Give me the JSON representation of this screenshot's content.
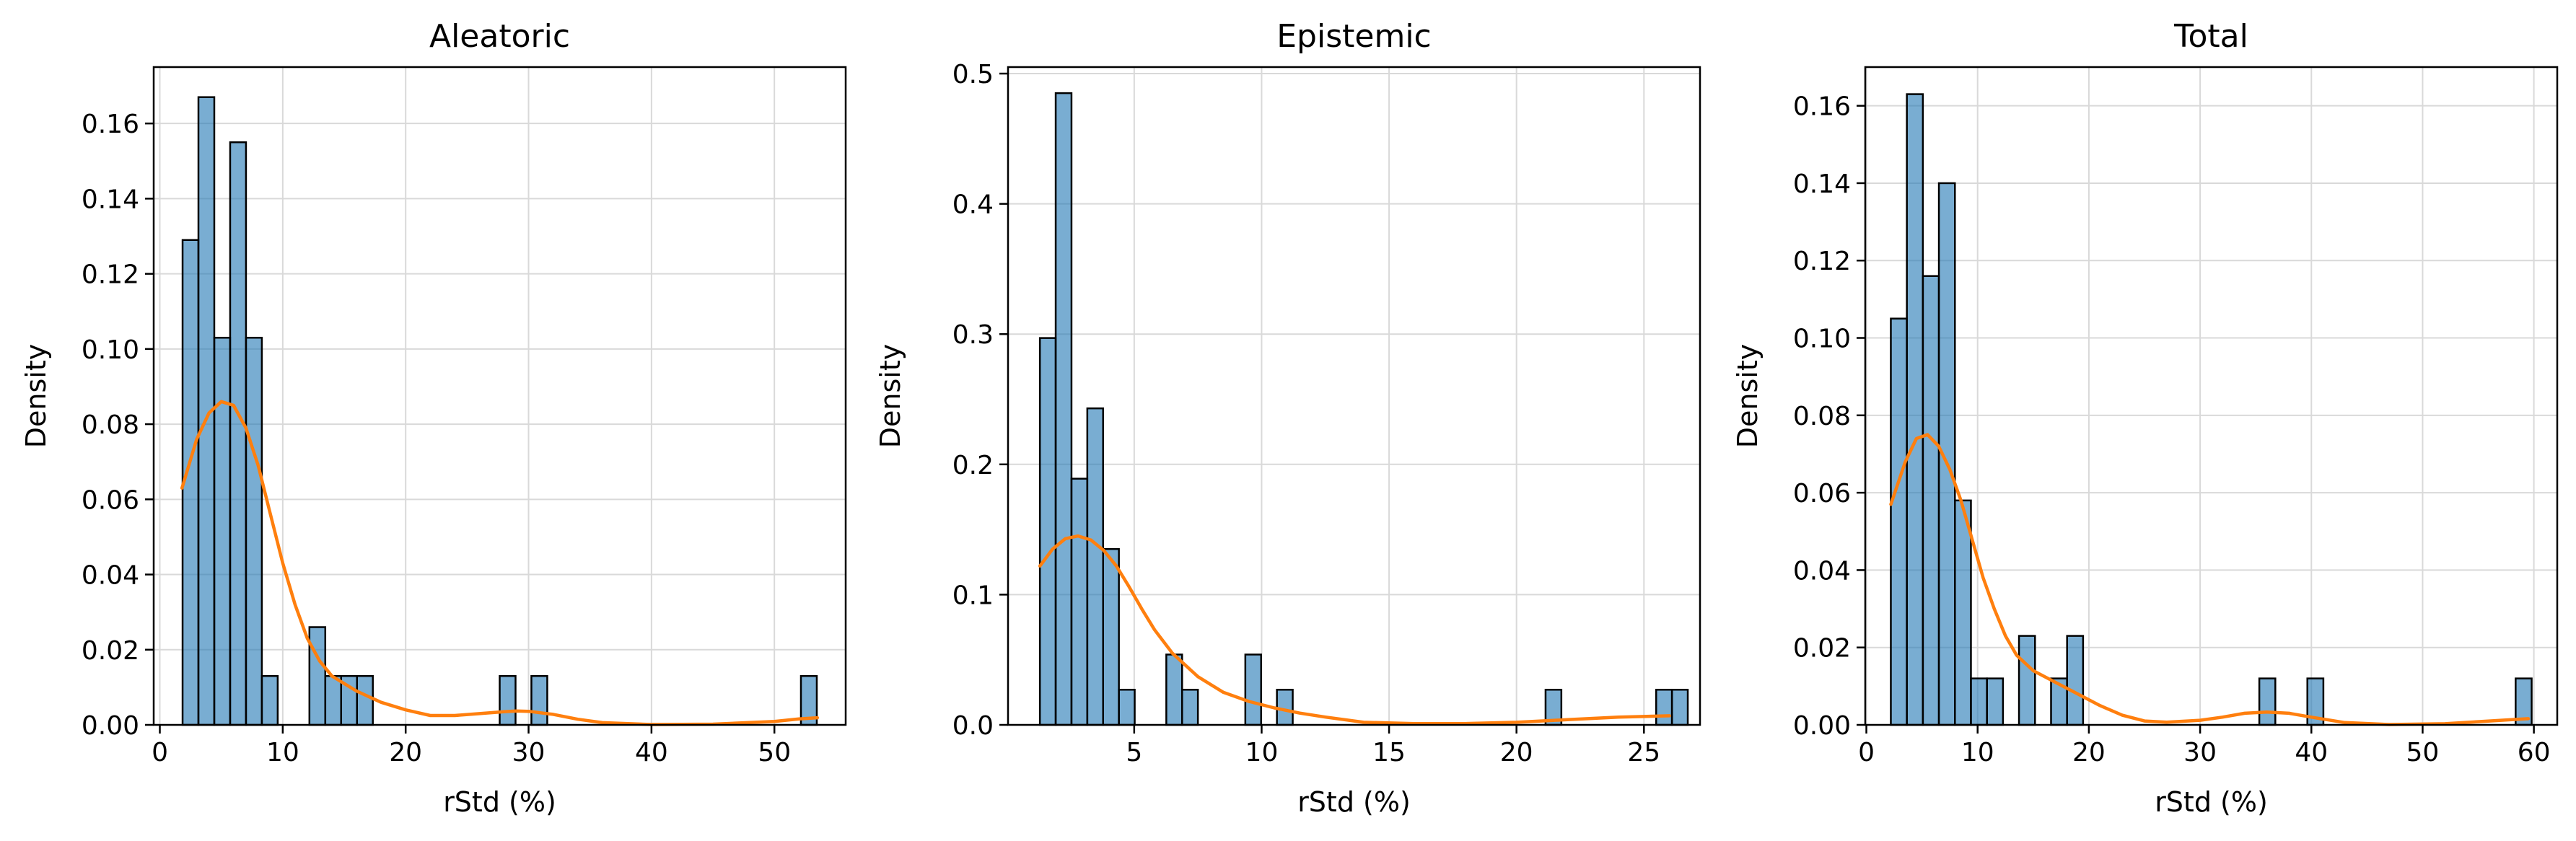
{
  "figure": {
    "colors": {
      "bar": "#1f77b4",
      "bar_edge": "#000000",
      "kde": "#ff7f0e",
      "grid": "#d9d9d9"
    }
  },
  "chart_data": [
    {
      "type": "histogram",
      "title": "Aleatoric",
      "xlabel": "rStd (%)",
      "ylabel": "Density",
      "xlim": [
        -0.5,
        55.8
      ],
      "ylim": [
        0,
        0.175
      ],
      "xticks": [
        0,
        10,
        20,
        30,
        40,
        50
      ],
      "yticks": [
        0.0,
        0.02,
        0.04,
        0.06,
        0.08,
        0.1,
        0.12,
        0.14,
        0.16
      ],
      "ytick_labels": [
        "0.00",
        "0.02",
        "0.04",
        "0.06",
        "0.08",
        "0.10",
        "0.12",
        "0.14",
        "0.16"
      ],
      "grid": true,
      "bin_edges_start": 1.85,
      "bin_width": 1.29,
      "densities": [
        0.129,
        0.167,
        0.103,
        0.155,
        0.103,
        0.013,
        0,
        0,
        0.026,
        0.013,
        0.013,
        0.013,
        0,
        0,
        0,
        0,
        0,
        0,
        0,
        0,
        0.013,
        0,
        0.013,
        0,
        0,
        0,
        0,
        0,
        0,
        0,
        0,
        0,
        0,
        0,
        0,
        0,
        0,
        0,
        0,
        0.013
      ],
      "kde": {
        "x": [
          1.8,
          3,
          4,
          5,
          6,
          7,
          8,
          9,
          10,
          11,
          12,
          13,
          14,
          15,
          16,
          18,
          20,
          22,
          24,
          26,
          28,
          29,
          30,
          32,
          34,
          36,
          40,
          45,
          50,
          52,
          53.5
        ],
        "y": [
          0.063,
          0.076,
          0.083,
          0.086,
          0.085,
          0.079,
          0.069,
          0.056,
          0.043,
          0.032,
          0.023,
          0.017,
          0.013,
          0.011,
          0.009,
          0.006,
          0.004,
          0.0025,
          0.0025,
          0.003,
          0.0035,
          0.0037,
          0.0036,
          0.0028,
          0.0015,
          0.0006,
          0.0001,
          0.0002,
          0.0009,
          0.0016,
          0.0019
        ]
      }
    },
    {
      "type": "histogram",
      "title": "Epistemic",
      "xlabel": "rStd (%)",
      "ylabel": "Density",
      "xlim": [
        0.05,
        27.2
      ],
      "ylim": [
        0,
        0.505
      ],
      "xticks": [
        5,
        10,
        15,
        20,
        25
      ],
      "yticks": [
        0.0,
        0.1,
        0.2,
        0.3,
        0.4,
        0.5
      ],
      "ytick_labels": [
        "0.0",
        "0.1",
        "0.2",
        "0.3",
        "0.4",
        "0.5"
      ],
      "grid": true,
      "bin_edges_start": 1.3,
      "bin_width": 0.62,
      "densities": [
        0.297,
        0.485,
        0.189,
        0.243,
        0.135,
        0.027,
        0,
        0,
        0.054,
        0.027,
        0,
        0,
        0,
        0.054,
        0,
        0.027,
        0,
        0,
        0,
        0,
        0,
        0,
        0,
        0,
        0,
        0,
        0,
        0,
        0,
        0,
        0,
        0,
        0.027,
        0,
        0,
        0,
        0,
        0,
        0,
        0.027,
        0.027
      ],
      "kde": {
        "x": [
          1.3,
          1.8,
          2.3,
          2.8,
          3.3,
          3.8,
          4.3,
          4.8,
          5.3,
          5.8,
          6.5,
          7.5,
          8.5,
          9.5,
          10.5,
          11.5,
          12.5,
          14,
          16,
          18,
          20,
          22,
          24,
          26
        ],
        "y": [
          0.122,
          0.135,
          0.143,
          0.145,
          0.142,
          0.134,
          0.122,
          0.106,
          0.089,
          0.073,
          0.055,
          0.037,
          0.025,
          0.018,
          0.013,
          0.009,
          0.006,
          0.002,
          0.001,
          0.001,
          0.002,
          0.004,
          0.006,
          0.007
        ]
      }
    },
    {
      "type": "histogram",
      "title": "Total",
      "xlabel": "rStd (%)",
      "ylabel": "Density",
      "xlim": [
        -0.1,
        62.1
      ],
      "ylim": [
        0,
        0.17
      ],
      "xticks": [
        0,
        10,
        20,
        30,
        40,
        50,
        60
      ],
      "yticks": [
        0.0,
        0.02,
        0.04,
        0.06,
        0.08,
        0.1,
        0.12,
        0.14,
        0.16
      ],
      "ytick_labels": [
        "0.00",
        "0.02",
        "0.04",
        "0.06",
        "0.08",
        "0.10",
        "0.12",
        "0.14",
        "0.16"
      ],
      "grid": true,
      "bin_edges_start": 2.2,
      "bin_width": 1.44,
      "densities": [
        0.105,
        0.163,
        0.116,
        0.14,
        0.058,
        0.012,
        0.012,
        0,
        0.023,
        0,
        0.012,
        0.023,
        0,
        0,
        0,
        0,
        0,
        0,
        0,
        0,
        0,
        0,
        0,
        0.012,
        0,
        0,
        0.012,
        0,
        0,
        0,
        0,
        0,
        0,
        0,
        0,
        0,
        0,
        0,
        0,
        0.012
      ],
      "kde": {
        "x": [
          2.2,
          3.5,
          4.5,
          5.5,
          6.5,
          7.5,
          8.5,
          9.5,
          10.5,
          11.5,
          12.5,
          13.5,
          15,
          17,
          19,
          21,
          23,
          25,
          27,
          30,
          32,
          34,
          36,
          38,
          40,
          43,
          47,
          52,
          56,
          59.5
        ],
        "y": [
          0.057,
          0.068,
          0.074,
          0.075,
          0.072,
          0.066,
          0.058,
          0.048,
          0.038,
          0.03,
          0.023,
          0.018,
          0.014,
          0.011,
          0.008,
          0.005,
          0.0025,
          0.001,
          0.0007,
          0.0012,
          0.002,
          0.003,
          0.0033,
          0.003,
          0.002,
          0.0006,
          0.0001,
          0.0003,
          0.001,
          0.0016
        ]
      }
    }
  ]
}
